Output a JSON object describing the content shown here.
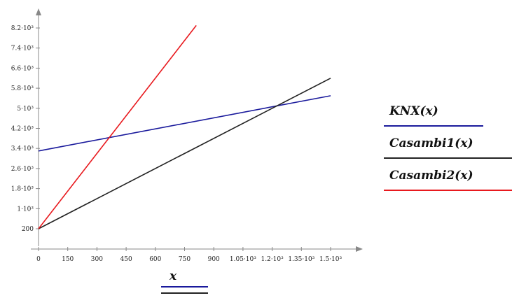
{
  "chart_data": {
    "type": "line",
    "x_label": "x",
    "x_ticks": [
      "0",
      "150",
      "300",
      "450",
      "600",
      "750",
      "900",
      "1.05·10³",
      "1.2·10³",
      "1.35·10³",
      "1.5·10³"
    ],
    "x_tick_values": [
      0,
      150,
      300,
      450,
      600,
      750,
      900,
      1050,
      1200,
      1350,
      1500
    ],
    "y_ticks": [
      "200",
      "1·10³",
      "1.8·10³",
      "2.6·10³",
      "3.4·10³",
      "4.2·10³",
      "5·10³",
      "5.8·10³",
      "6.6·10³",
      "7.4·10³",
      "8.2·10³"
    ],
    "y_tick_values": [
      200,
      1000,
      1800,
      2600,
      3400,
      4200,
      5000,
      5800,
      6600,
      7400,
      8200
    ],
    "xlim": [
      0,
      1500
    ],
    "ylim": [
      200,
      8200
    ],
    "series": [
      {
        "name": "KNX(x)",
        "color": "#1a1a9c",
        "x": [
          0,
          1500
        ],
        "y": [
          3300,
          5500
        ]
      },
      {
        "name": "Casambi1(x)",
        "color": "#222222",
        "x": [
          0,
          1500
        ],
        "y": [
          200,
          6200
        ]
      },
      {
        "name": "Casambi2(x)",
        "color": "#e8191e",
        "x": [
          0,
          810
        ],
        "y": [
          200,
          8300
        ]
      }
    ],
    "legend": [
      {
        "label": "KNX(x)",
        "color": "#1a1a9c"
      },
      {
        "label": "Casambi1(x)",
        "color": "#222222"
      },
      {
        "label": "Casambi2(x)",
        "color": "#e8191e"
      }
    ],
    "grid": false
  }
}
